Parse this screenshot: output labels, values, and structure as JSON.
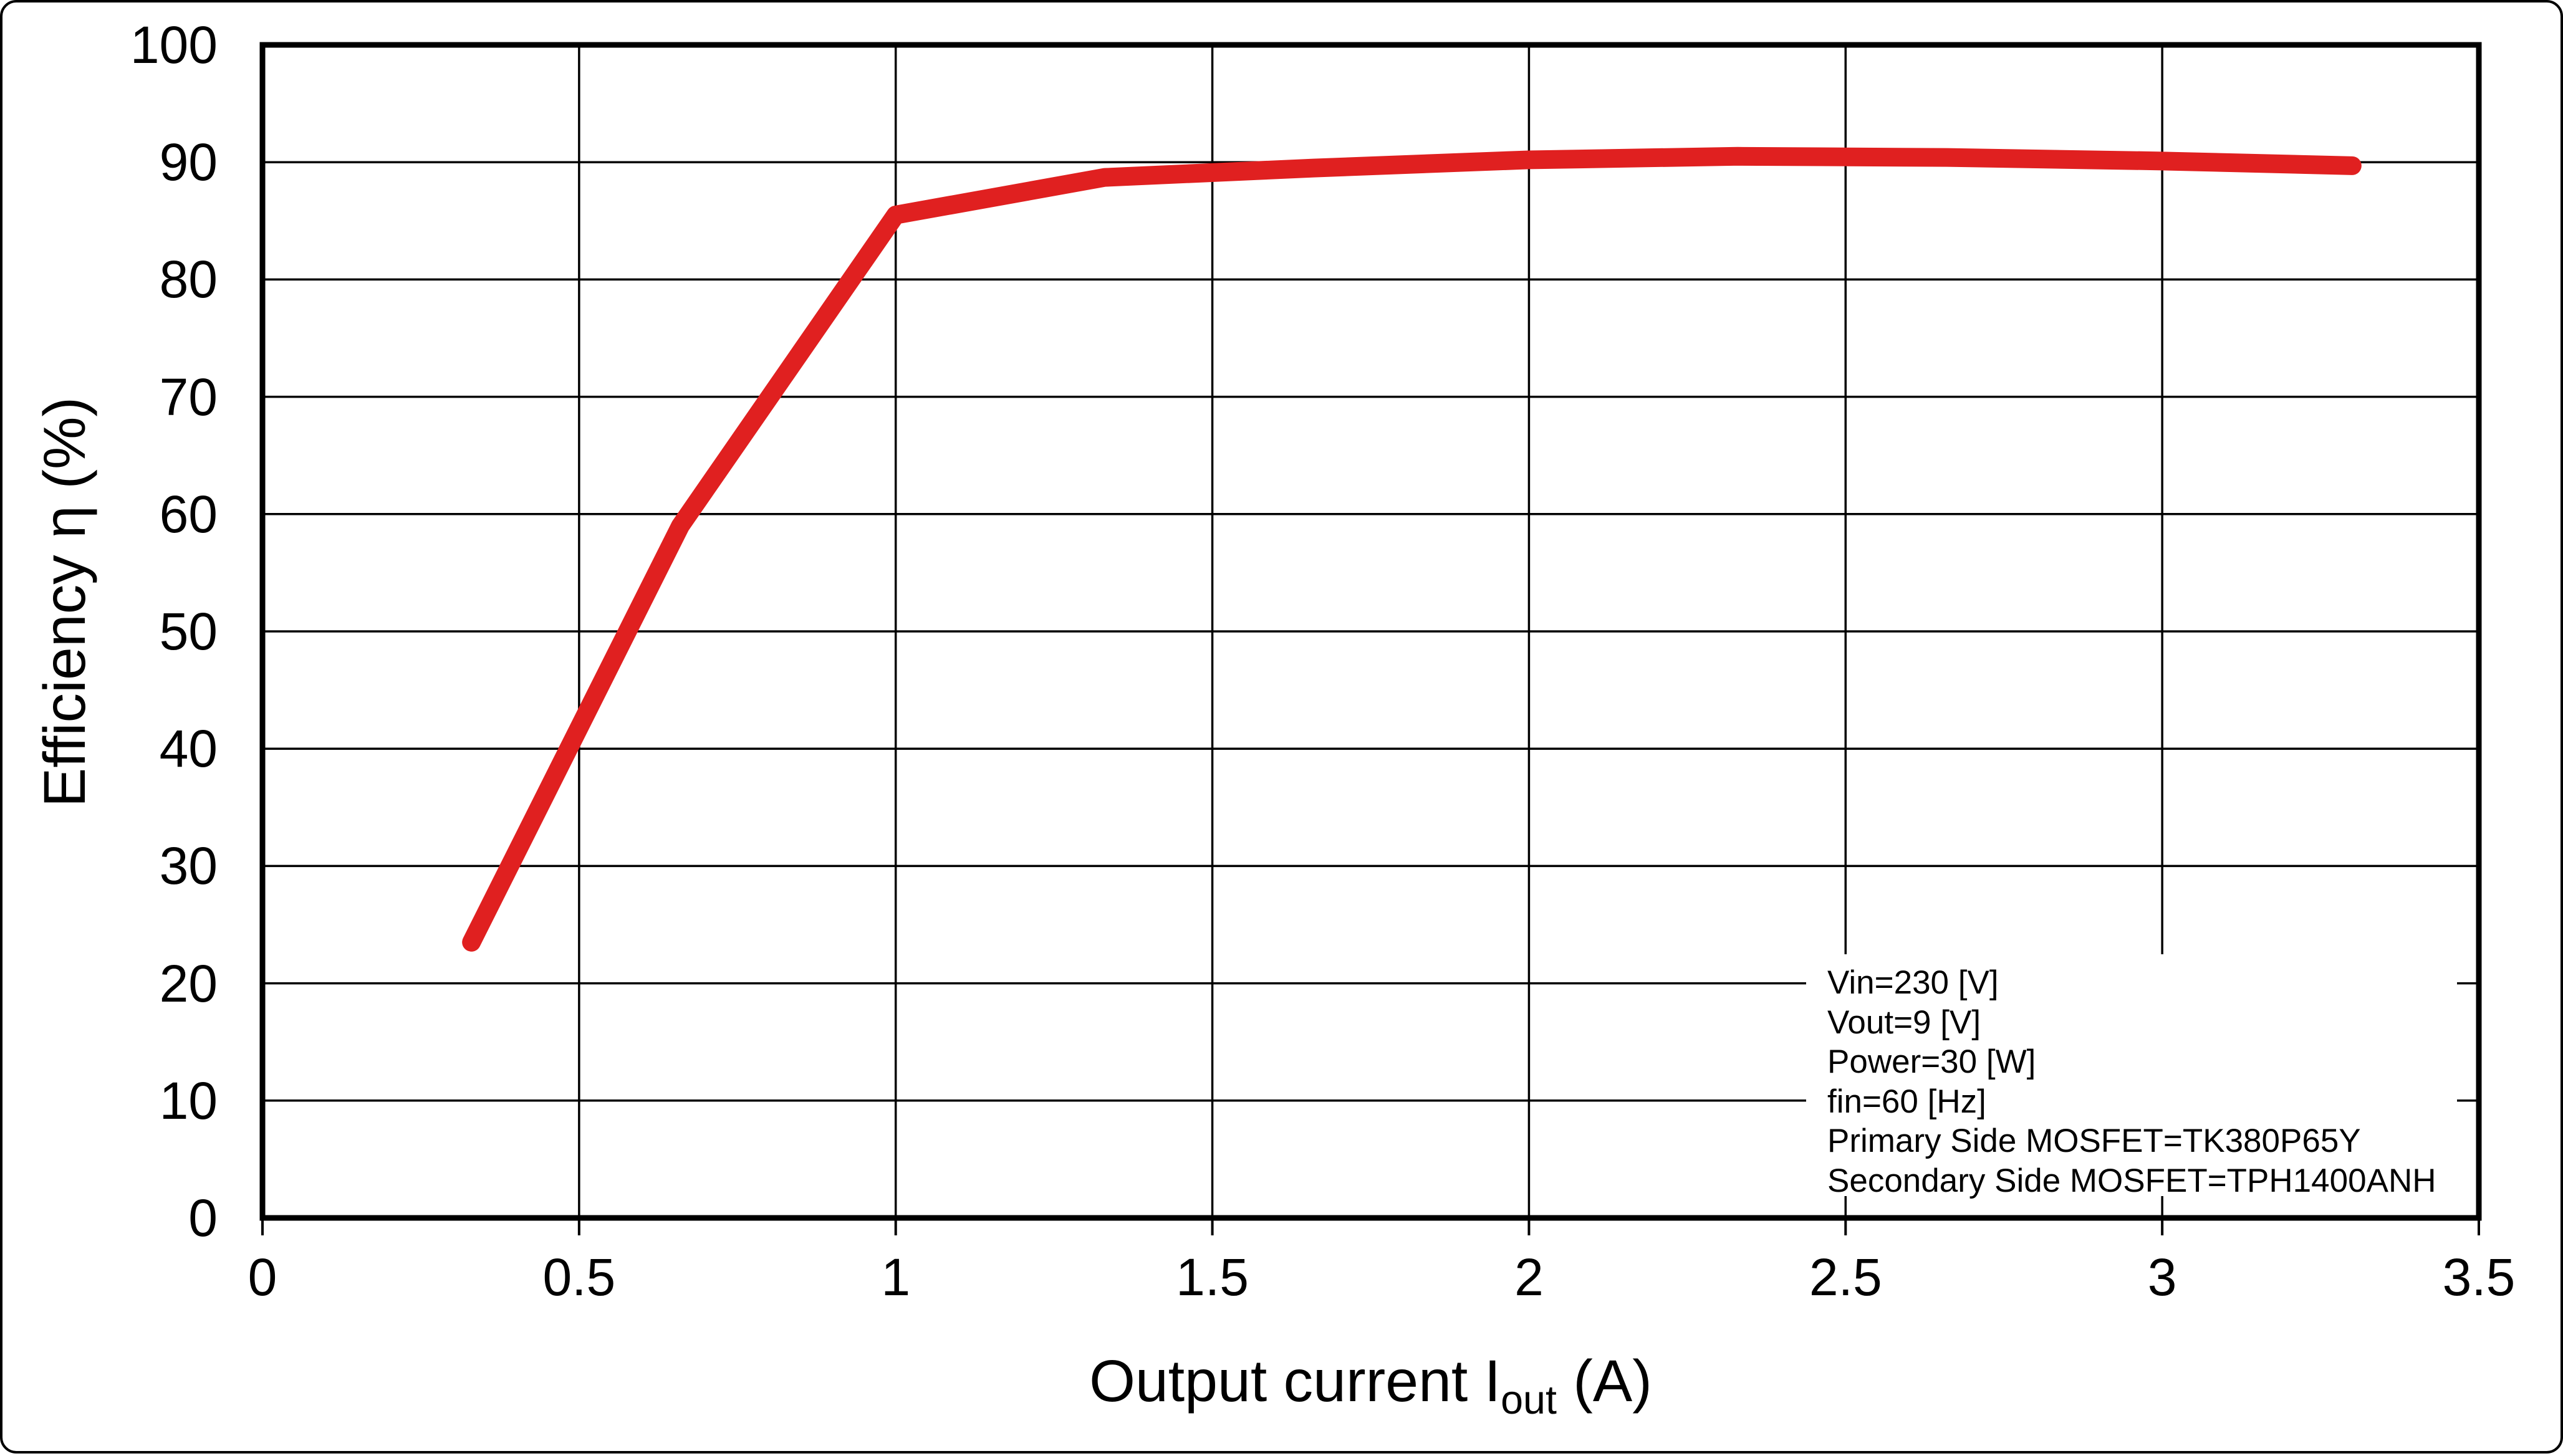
{
  "chart_data": {
    "type": "line",
    "title": "",
    "xlabel": {
      "prefix": "Output current  I",
      "sub": "out",
      "suffix": " (A)"
    },
    "ylabel": "Efficiency  η (%)",
    "xlim": [
      0,
      3.5
    ],
    "ylim": [
      0,
      100
    ],
    "grid": true,
    "x_ticks": [
      0,
      0.5,
      1,
      1.5,
      2,
      2.5,
      3,
      3.5
    ],
    "x_tick_labels": [
      "0",
      "0.5",
      "1",
      "1.5",
      "2",
      "2.5",
      "3",
      "3.5"
    ],
    "y_ticks": [
      0,
      10,
      20,
      30,
      40,
      50,
      60,
      70,
      80,
      90,
      100
    ],
    "y_tick_labels": [
      "0",
      "10",
      "20",
      "30",
      "40",
      "50",
      "60",
      "70",
      "80",
      "90",
      "100"
    ],
    "x": [
      0.33,
      0.66,
      1.0,
      1.33,
      1.66,
      2.0,
      2.33,
      2.66,
      3.0,
      3.3
    ],
    "series": [
      {
        "name": "Efficiency",
        "color": "#e02020",
        "values": [
          23.5,
          59.0,
          85.5,
          88.7,
          89.5,
          90.2,
          90.5,
          90.4,
          90.1,
          89.7
        ]
      }
    ],
    "annotation": {
      "lines": [
        "Vin=230 [V]",
        "Vout=9 [V]",
        "Power=30 [W]",
        "fin=60 [Hz]",
        "Primary Side MOSFET=TK380P65Y",
        "Secondary Side MOSFET=TPH1400ANH"
      ]
    }
  },
  "colors": {
    "line": "#e02020",
    "axis": "#000000",
    "background": "#ffffff"
  }
}
